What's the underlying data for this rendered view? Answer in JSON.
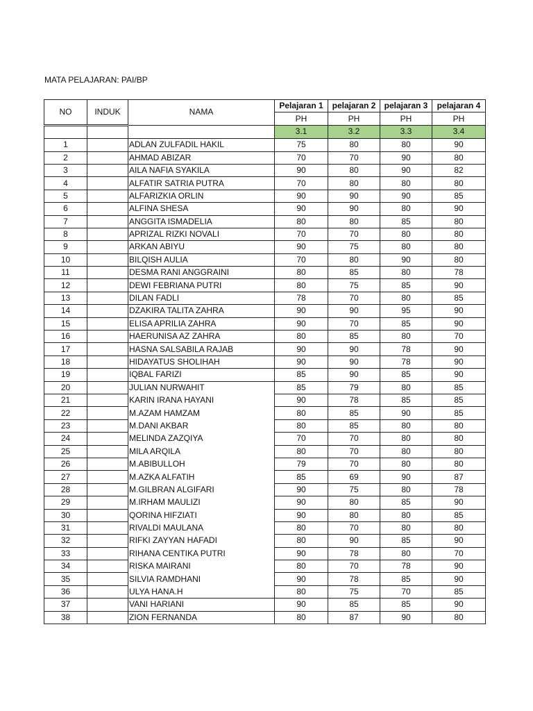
{
  "title": "MATA PELAJARAN: PAI/BP",
  "headers": {
    "no": "NO",
    "induk": "INDUK",
    "nama": "NAMA",
    "subjects": [
      "Pelajaran 1",
      "pelajaran 2",
      "pelajaran 3",
      "pelajaran 4"
    ],
    "sub": [
      "PH",
      "PH",
      "PH",
      "PH"
    ],
    "codes": [
      "3.1",
      "3.2",
      "3.3",
      "3.4"
    ]
  },
  "colors": {
    "code_row": "#a9d18e"
  },
  "rows": [
    {
      "no": "1",
      "nama": "ADLAN ZULFADIL HAKIL",
      "scores": [
        "75",
        "80",
        "80",
        "90"
      ]
    },
    {
      "no": "2",
      "nama": "AHMAD ABIZAR",
      "scores": [
        "70",
        "70",
        "90",
        "80"
      ]
    },
    {
      "no": "3",
      "nama": "AILA NAFIA SYAKILA",
      "scores": [
        "90",
        "80",
        "90",
        "82"
      ]
    },
    {
      "no": "4",
      "nama": "ALFATIR SATRIA PUTRA",
      "scores": [
        "70",
        "80",
        "80",
        "80"
      ]
    },
    {
      "no": "5",
      "nama": "ALFARIZKIA ORLIN",
      "scores": [
        "90",
        "90",
        "90",
        "85"
      ]
    },
    {
      "no": "6",
      "nama": "ALFINA SHESA",
      "scores": [
        "90",
        "90",
        "80",
        "90"
      ]
    },
    {
      "no": "7",
      "nama": "ANGGITA ISMADELIA",
      "scores": [
        "80",
        "80",
        "85",
        "80"
      ]
    },
    {
      "no": "8",
      "nama": "APRIZAL RIZKI NOVALI",
      "scores": [
        "70",
        "70",
        "80",
        "80"
      ]
    },
    {
      "no": "9",
      "nama": "ARKAN ABIYU",
      "scores": [
        "90",
        "75",
        "80",
        "80"
      ]
    },
    {
      "no": "10",
      "nama": "BILQISH AULIA",
      "scores": [
        "70",
        "80",
        "90",
        "80"
      ]
    },
    {
      "no": "11",
      "nama": "DESMA RANI ANGGRAINI",
      "scores": [
        "80",
        "85",
        "80",
        "78"
      ]
    },
    {
      "no": "12",
      "nama": "DEWI FEBRIANA PUTRI",
      "scores": [
        "80",
        "75",
        "85",
        "90"
      ]
    },
    {
      "no": "13",
      "nama": "DILAN FADLI",
      "scores": [
        "78",
        "70",
        "80",
        "85"
      ]
    },
    {
      "no": "14",
      "nama": "DZAKIRA TALITA ZAHRA",
      "scores": [
        "90",
        "90",
        "95",
        "90"
      ]
    },
    {
      "no": "15",
      "nama": "ELISA APRILIA ZAHRA",
      "scores": [
        "90",
        "70",
        "85",
        "90"
      ]
    },
    {
      "no": "16",
      "nama": "HAERUNISA AZ ZAHRA",
      "scores": [
        "80",
        "85",
        "80",
        "70"
      ]
    },
    {
      "no": "17",
      "nama": "HASNA SALSABILA RAJAB",
      "scores": [
        "90",
        "90",
        "78",
        "90"
      ]
    },
    {
      "no": "18",
      "nama": "HIDAYATUS SHOLIHAH",
      "scores": [
        "90",
        "90",
        "78",
        "90"
      ]
    },
    {
      "no": "19",
      "nama": "IQBAL FARIZI",
      "scores": [
        "85",
        "90",
        "85",
        "90"
      ]
    },
    {
      "no": "20",
      "nama": "JULIAN NURWAHIT",
      "scores": [
        "85",
        "79",
        "80",
        "85"
      ]
    },
    {
      "no": "21",
      "nama": "KARIN IRANA HAYANI",
      "scores": [
        "90",
        "78",
        "85",
        "85"
      ]
    },
    {
      "no": "22",
      "nama": "M.AZAM HAMZAM",
      "scores": [
        "80",
        "85",
        "90",
        "85"
      ]
    },
    {
      "no": "23",
      "nama": "M.DANI AKBAR",
      "scores": [
        "80",
        "85",
        "80",
        "80"
      ]
    },
    {
      "no": "24",
      "nama": "MELINDA ZAZQIYA",
      "scores": [
        "70",
        "70",
        "80",
        "80"
      ]
    },
    {
      "no": "25",
      "nama": "MILA ARQILA",
      "scores": [
        "80",
        "70",
        "80",
        "80"
      ]
    },
    {
      "no": "26",
      "nama": "M.ABIBULLOH",
      "scores": [
        "79",
        "70",
        "80",
        "80"
      ]
    },
    {
      "no": "27",
      "nama": "M.AZKA ALFATIH",
      "scores": [
        "85",
        "69",
        "90",
        "87"
      ]
    },
    {
      "no": "28",
      "nama": "M.GILBRAN ALGIFARI",
      "scores": [
        "90",
        "75",
        "80",
        "78"
      ]
    },
    {
      "no": "29",
      "nama": "M.IRHAM MAULIZI",
      "scores": [
        "90",
        "80",
        "85",
        "90"
      ]
    },
    {
      "no": "30",
      "nama": "QORINA HIFZIATI",
      "scores": [
        "90",
        "80",
        "80",
        "85"
      ]
    },
    {
      "no": "31",
      "nama": "RIVALDI MAULANA",
      "scores": [
        "80",
        "70",
        "80",
        "80"
      ]
    },
    {
      "no": "32",
      "nama": "RIFKI ZAYYAN HAFADI",
      "scores": [
        "80",
        "90",
        "85",
        "90"
      ]
    },
    {
      "no": "33",
      "nama": "RIHANA CENTIKA PUTRI",
      "scores": [
        "90",
        "78",
        "80",
        "70"
      ]
    },
    {
      "no": "34",
      "nama": "RISKA MAIRANI",
      "scores": [
        "80",
        "70",
        "78",
        "90"
      ]
    },
    {
      "no": "35",
      "nama": "SILVIA RAMDHANI",
      "scores": [
        "90",
        "78",
        "85",
        "90"
      ]
    },
    {
      "no": "36",
      "nama": "ULYA HANA.H",
      "scores": [
        "80",
        "75",
        "70",
        "85"
      ]
    },
    {
      "no": "37",
      "nama": "VANI HARIANI",
      "scores": [
        "90",
        "85",
        "85",
        "90"
      ]
    },
    {
      "no": "38",
      "nama": "ZION FERNANDA",
      "scores": [
        "80",
        "87",
        "90",
        "80"
      ]
    }
  ]
}
